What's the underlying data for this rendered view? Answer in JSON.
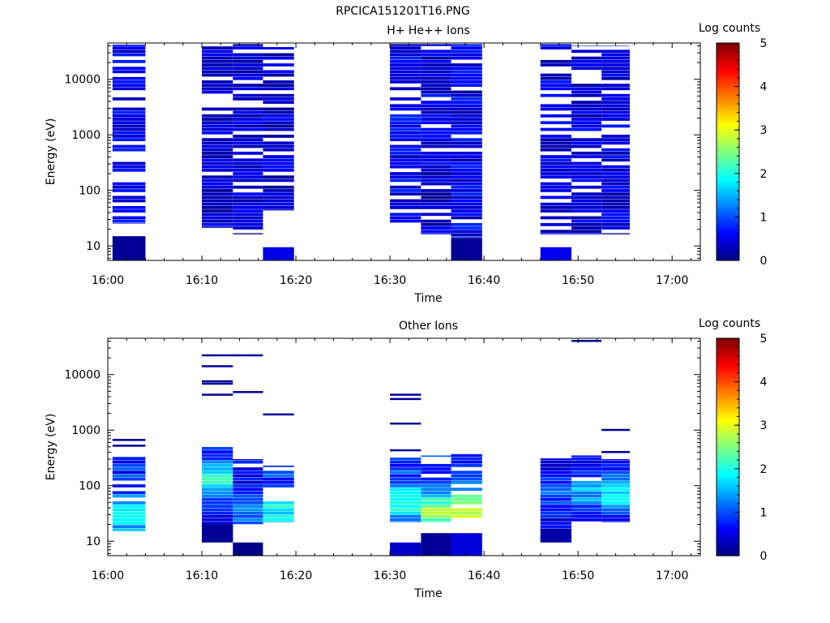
{
  "page_title": "RPCICA151201T16.PNG",
  "chart_data": [
    {
      "type": "heatmap",
      "title": "H+ He++ Ions",
      "xlabel": "Time",
      "ylabel": "Energy (eV)",
      "x_ticks": [
        "16:00",
        "16:10",
        "16:20",
        "16:30",
        "16:40",
        "16:50",
        "17:00"
      ],
      "y_ticks": [
        "10",
        "100",
        "1000",
        "10000"
      ],
      "y_scale": "log",
      "ylim": [
        5.5,
        45000
      ],
      "xlim": [
        "16:00",
        "17:03"
      ],
      "colorbar": {
        "label": "Log counts",
        "ticks": [
          "0",
          "1",
          "2",
          "3",
          "4",
          "5"
        ],
        "range": [
          0,
          5
        ]
      },
      "columns": [
        {
          "t0": "16:00.5",
          "t1": "16:04",
          "emin": 25,
          "emax": 42000,
          "level": 0.55,
          "variation": 0.25,
          "gap_rate": 0.38,
          "low_patch": {
            "emin": 5.5,
            "emax": 15,
            "level": 0.1
          }
        },
        {
          "t0": "16:10",
          "t1": "16:13.3",
          "emin": 21,
          "emax": 43000,
          "level": 0.4,
          "variation": 0.3,
          "gap_rate": 0.2
        },
        {
          "t0": "16:13.3",
          "t1": "16:16.5",
          "emin": 16,
          "emax": 43000,
          "level": 0.4,
          "variation": 0.3,
          "gap_rate": 0.2
        },
        {
          "t0": "16:16.5",
          "t1": "16:19.8",
          "emin": 43,
          "emax": 38000,
          "level": 0.4,
          "variation": 0.3,
          "gap_rate": 0.18,
          "low_patch": {
            "emin": 5.5,
            "emax": 9.5,
            "level": 0.5
          }
        },
        {
          "t0": "16:30",
          "t1": "16:33.3",
          "emin": 26,
          "emax": 43000,
          "level": 0.55,
          "variation": 0.3,
          "gap_rate": 0.2
        },
        {
          "t0": "16:33.3",
          "t1": "16:36.5",
          "emin": 16,
          "emax": 43000,
          "level": 0.45,
          "variation": 0.35,
          "gap_rate": 0.12
        },
        {
          "t0": "16:36.5",
          "t1": "16:39.8",
          "emin": 14,
          "emax": 43000,
          "level": 0.5,
          "variation": 0.35,
          "gap_rate": 0.1,
          "low_patch": {
            "emin": 5.5,
            "emax": 14,
            "level": 0.1
          }
        },
        {
          "t0": "16:46",
          "t1": "16:49.3",
          "emin": 16,
          "emax": 43000,
          "level": 0.5,
          "variation": 0.3,
          "gap_rate": 0.22,
          "low_patch": {
            "emin": 5.5,
            "emax": 9.5,
            "level": 0.55
          }
        },
        {
          "t0": "16:49.3",
          "t1": "16:52.5",
          "emin": 16,
          "emax": 40000,
          "level": 0.45,
          "variation": 0.3,
          "gap_rate": 0.2
        },
        {
          "t0": "16:52.5",
          "t1": "16:55.5",
          "emin": 16,
          "emax": 40000,
          "level": 0.45,
          "variation": 0.3,
          "gap_rate": 0.2
        }
      ]
    },
    {
      "type": "heatmap",
      "title": "Other Ions",
      "xlabel": "Time",
      "ylabel": "Energy (eV)",
      "x_ticks": [
        "16:00",
        "16:10",
        "16:20",
        "16:30",
        "16:40",
        "16:50",
        "17:00"
      ],
      "y_ticks": [
        "10",
        "100",
        "1000",
        "10000"
      ],
      "y_scale": "log",
      "ylim": [
        5.5,
        45000
      ],
      "xlim": [
        "16:00",
        "17:03"
      ],
      "colorbar": {
        "label": "Log counts",
        "ticks": [
          "0",
          "1",
          "2",
          "3",
          "4",
          "5"
        ],
        "range": [
          0,
          5
        ]
      },
      "columns": [
        {
          "t0": "16:00.5",
          "t1": "16:04",
          "emin": 15,
          "emax": 330,
          "level": 0.8,
          "variation": 0.4,
          "gap_rate": 0.2,
          "peak_energy": 30,
          "peak_level": 1.9,
          "lines": [
            520,
            660
          ]
        },
        {
          "t0": "16:10",
          "t1": "16:13.3",
          "emin": 10,
          "emax": 540,
          "level": 0.7,
          "variation": 0.3,
          "gap_rate": 0.05,
          "peak_energy": 130,
          "peak_level": 1.95,
          "lines": [
            4300,
            6800,
            7500,
            14000,
            22000
          ],
          "low_patch": {
            "emin": 9.5,
            "emax": 20,
            "level": 0.1
          }
        },
        {
          "t0": "16:13.3",
          "t1": "16:16.5",
          "emin": 20,
          "emax": 300,
          "level": 0.55,
          "variation": 0.3,
          "gap_rate": 0.1,
          "peak_energy": 35,
          "peak_level": 1.3,
          "lines": [
            4800,
            22000
          ],
          "low_patch": {
            "emin": 5.5,
            "emax": 9.5,
            "level": 0.05
          }
        },
        {
          "t0": "16:16.5",
          "t1": "16:19.8",
          "emin": 22,
          "emax": 230,
          "level": 0.9,
          "variation": 0.35,
          "gap_rate": 0.1,
          "peak_energy": 35,
          "peak_level": 1.9,
          "lines": [
            1900
          ]
        },
        {
          "t0": "16:30",
          "t1": "16:33.3",
          "emin": 22,
          "emax": 320,
          "level": 0.9,
          "variation": 0.3,
          "gap_rate": 0.05,
          "peak_energy": 50,
          "peak_level": 2.1,
          "lines": [
            430,
            1300,
            3600,
            4300
          ],
          "low_patch": {
            "emin": 5.5,
            "emax": 9.5,
            "level": 0.35
          }
        },
        {
          "t0": "16:33.3",
          "t1": "16:36.5",
          "emin": 22,
          "emax": 350,
          "level": 0.9,
          "variation": 0.3,
          "gap_rate": 0.05,
          "peak_energy": 35,
          "peak_level": 2.7,
          "low_patch": {
            "emin": 5.5,
            "emax": 14,
            "level": 0.1
          }
        },
        {
          "t0": "16:36.5",
          "t1": "16:39.8",
          "emin": 26,
          "emax": 370,
          "level": 0.9,
          "variation": 0.3,
          "gap_rate": 0.05,
          "peak_energy": 38,
          "peak_level": 3.1,
          "low_patch": {
            "emin": 5.5,
            "emax": 14,
            "level": 0.45
          }
        },
        {
          "t0": "16:46",
          "t1": "16:49.3",
          "emin": 10,
          "emax": 310,
          "level": 0.5,
          "variation": 0.3,
          "gap_rate": 0.1,
          "peak_energy": 70,
          "peak_level": 1.0,
          "low_patch": {
            "emin": 9.5,
            "emax": 17,
            "level": 0.2
          }
        },
        {
          "t0": "16:49.3",
          "t1": "16:52.5",
          "emin": 20,
          "emax": 350,
          "level": 0.6,
          "variation": 0.3,
          "gap_rate": 0.1,
          "peak_energy": 80,
          "peak_level": 1.5,
          "lines": [
            40000
          ]
        },
        {
          "t0": "16:52.5",
          "t1": "16:55.5",
          "emin": 22,
          "emax": 300,
          "level": 0.6,
          "variation": 0.3,
          "gap_rate": 0.08,
          "peak_energy": 70,
          "peak_level": 1.9,
          "lines": [
            400,
            1000
          ]
        }
      ]
    }
  ]
}
